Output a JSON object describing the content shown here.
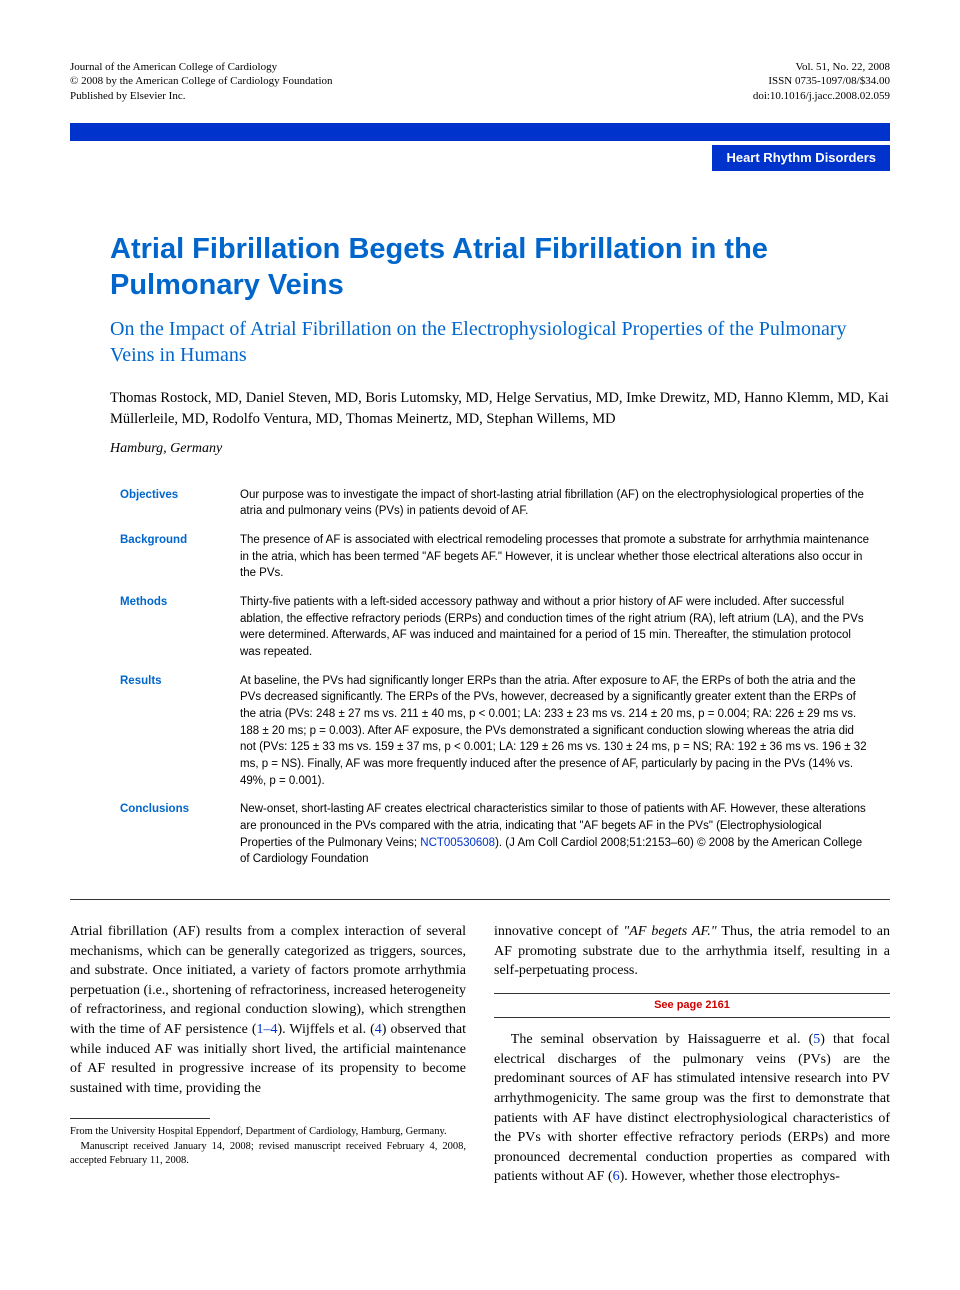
{
  "header": {
    "journal": "Journal of the American College of Cardiology",
    "copyright": "© 2008 by the American College of Cardiology Foundation",
    "publisher": "Published by Elsevier Inc.",
    "volume": "Vol. 51, No. 22, 2008",
    "issn": "ISSN 0735-1097/08/$34.00",
    "doi": "doi:10.1016/j.jacc.2008.02.059"
  },
  "category": "Heart Rhythm Disorders",
  "title": "Atrial Fibrillation Begets Atrial Fibrillation in the Pulmonary Veins",
  "subtitle": "On the Impact of Atrial Fibrillation on the Electrophysiological Properties of the Pulmonary Veins in Humans",
  "authors": "Thomas Rostock, MD, Daniel Steven, MD, Boris Lutomsky, MD, Helge Servatius, MD, Imke Drewitz, MD, Hanno Klemm, MD, Kai Müllerleile, MD, Rodolfo Ventura, MD, Thomas Meinertz, MD, Stephan Willems, MD",
  "location": "Hamburg, Germany",
  "abstract": {
    "objectives": {
      "label": "Objectives",
      "text": "Our purpose was to investigate the impact of short-lasting atrial fibrillation (AF) on the electrophysiological properties of the atria and pulmonary veins (PVs) in patients devoid of AF."
    },
    "background": {
      "label": "Background",
      "text": "The presence of AF is associated with electrical remodeling processes that promote a substrate for arrhythmia maintenance in the atria, which has been termed \"AF begets AF.\" However, it is unclear whether those electrical alterations also occur in the PVs."
    },
    "methods": {
      "label": "Methods",
      "text": "Thirty-five patients with a left-sided accessory pathway and without a prior history of AF were included. After successful ablation, the effective refractory periods (ERPs) and conduction times of the right atrium (RA), left atrium (LA), and the PVs were determined. Afterwards, AF was induced and maintained for a period of 15 min. Thereafter, the stimulation protocol was repeated."
    },
    "results": {
      "label": "Results",
      "text": "At baseline, the PVs had significantly longer ERPs than the atria. After exposure to AF, the ERPs of both the atria and the PVs decreased significantly. The ERPs of the PVs, however, decreased by a significantly greater extent than the ERPs of the atria (PVs: 248 ± 27 ms vs. 211 ± 40 ms, p < 0.001; LA: 233 ± 23 ms vs. 214 ± 20 ms, p = 0.004; RA: 226 ± 29 ms vs. 188 ± 20 ms; p = 0.003). After AF exposure, the PVs demonstrated a significant conduction slowing whereas the atria did not (PVs: 125 ± 33 ms vs. 159 ± 37 ms, p < 0.001; LA: 129 ± 26 ms vs. 130 ± 24 ms, p = NS; RA: 192 ± 36 ms vs. 196 ± 32 ms, p = NS). Finally, AF was more frequently induced after the presence of AF, particularly by pacing in the PVs (14% vs. 49%, p = 0.001)."
    },
    "conclusions": {
      "label": "Conclusions",
      "text_a": "New-onset, short-lasting AF creates electrical characteristics similar to those of patients with AF. However, these alterations are pronounced in the PVs compared with the atria, indicating that \"AF begets AF in the PVs\" (Electrophysiological Properties of the Pulmonary Veins; ",
      "link": "NCT00530608",
      "text_b": ").   (J Am Coll Cardiol 2008;51:2153–60) © 2008 by the American College of Cardiology Foundation"
    }
  },
  "body": {
    "para1_a": "Atrial fibrillation (AF) results from a complex interaction of several mechanisms, which can be generally categorized as triggers, sources, and substrate. Once initiated, a variety of factors promote arrhythmia perpetuation (i.e., shortening of refractoriness, increased heterogeneity of refractoriness, and regional conduction slowing), which strengthen with the time of AF persistence (",
    "ref1": "1–4",
    "para1_b": "). Wijffels et al. (",
    "ref2": "4",
    "para1_c": ") observed that while induced AF was initially short lived, the artificial maintenance of AF resulted in progressive increase of its propensity to become sustained with time, providing the",
    "para2_a": "innovative concept of ",
    "para2_i": "\"AF begets AF.\"",
    "para2_b": " Thus, the atria remodel to an AF promoting substrate due to the arrhythmia itself, resulting in a self-perpetuating process.",
    "see_page": "See page 2161",
    "para3_a": "The seminal observation by Haissaguerre et al. (",
    "ref3": "5",
    "para3_b": ") that focal electrical discharges of the pulmonary veins (PVs) are the predominant sources of AF has stimulated intensive research into PV arrhythmogenicity. The same group was the first to demonstrate that patients with AF have distinct electrophysiological characteristics of the PVs with shorter effective refractory periods (ERPs) and more pronounced decremental conduction properties as compared with patients without AF (",
    "ref4": "6",
    "para3_c": "). However, whether those electrophys-"
  },
  "footnotes": {
    "from": "From the University Hospital Eppendorf, Department of Cardiology, Hamburg, Germany.",
    "manuscript": "Manuscript received January 14, 2008; revised manuscript received February 4, 2008, accepted February 11, 2008."
  }
}
